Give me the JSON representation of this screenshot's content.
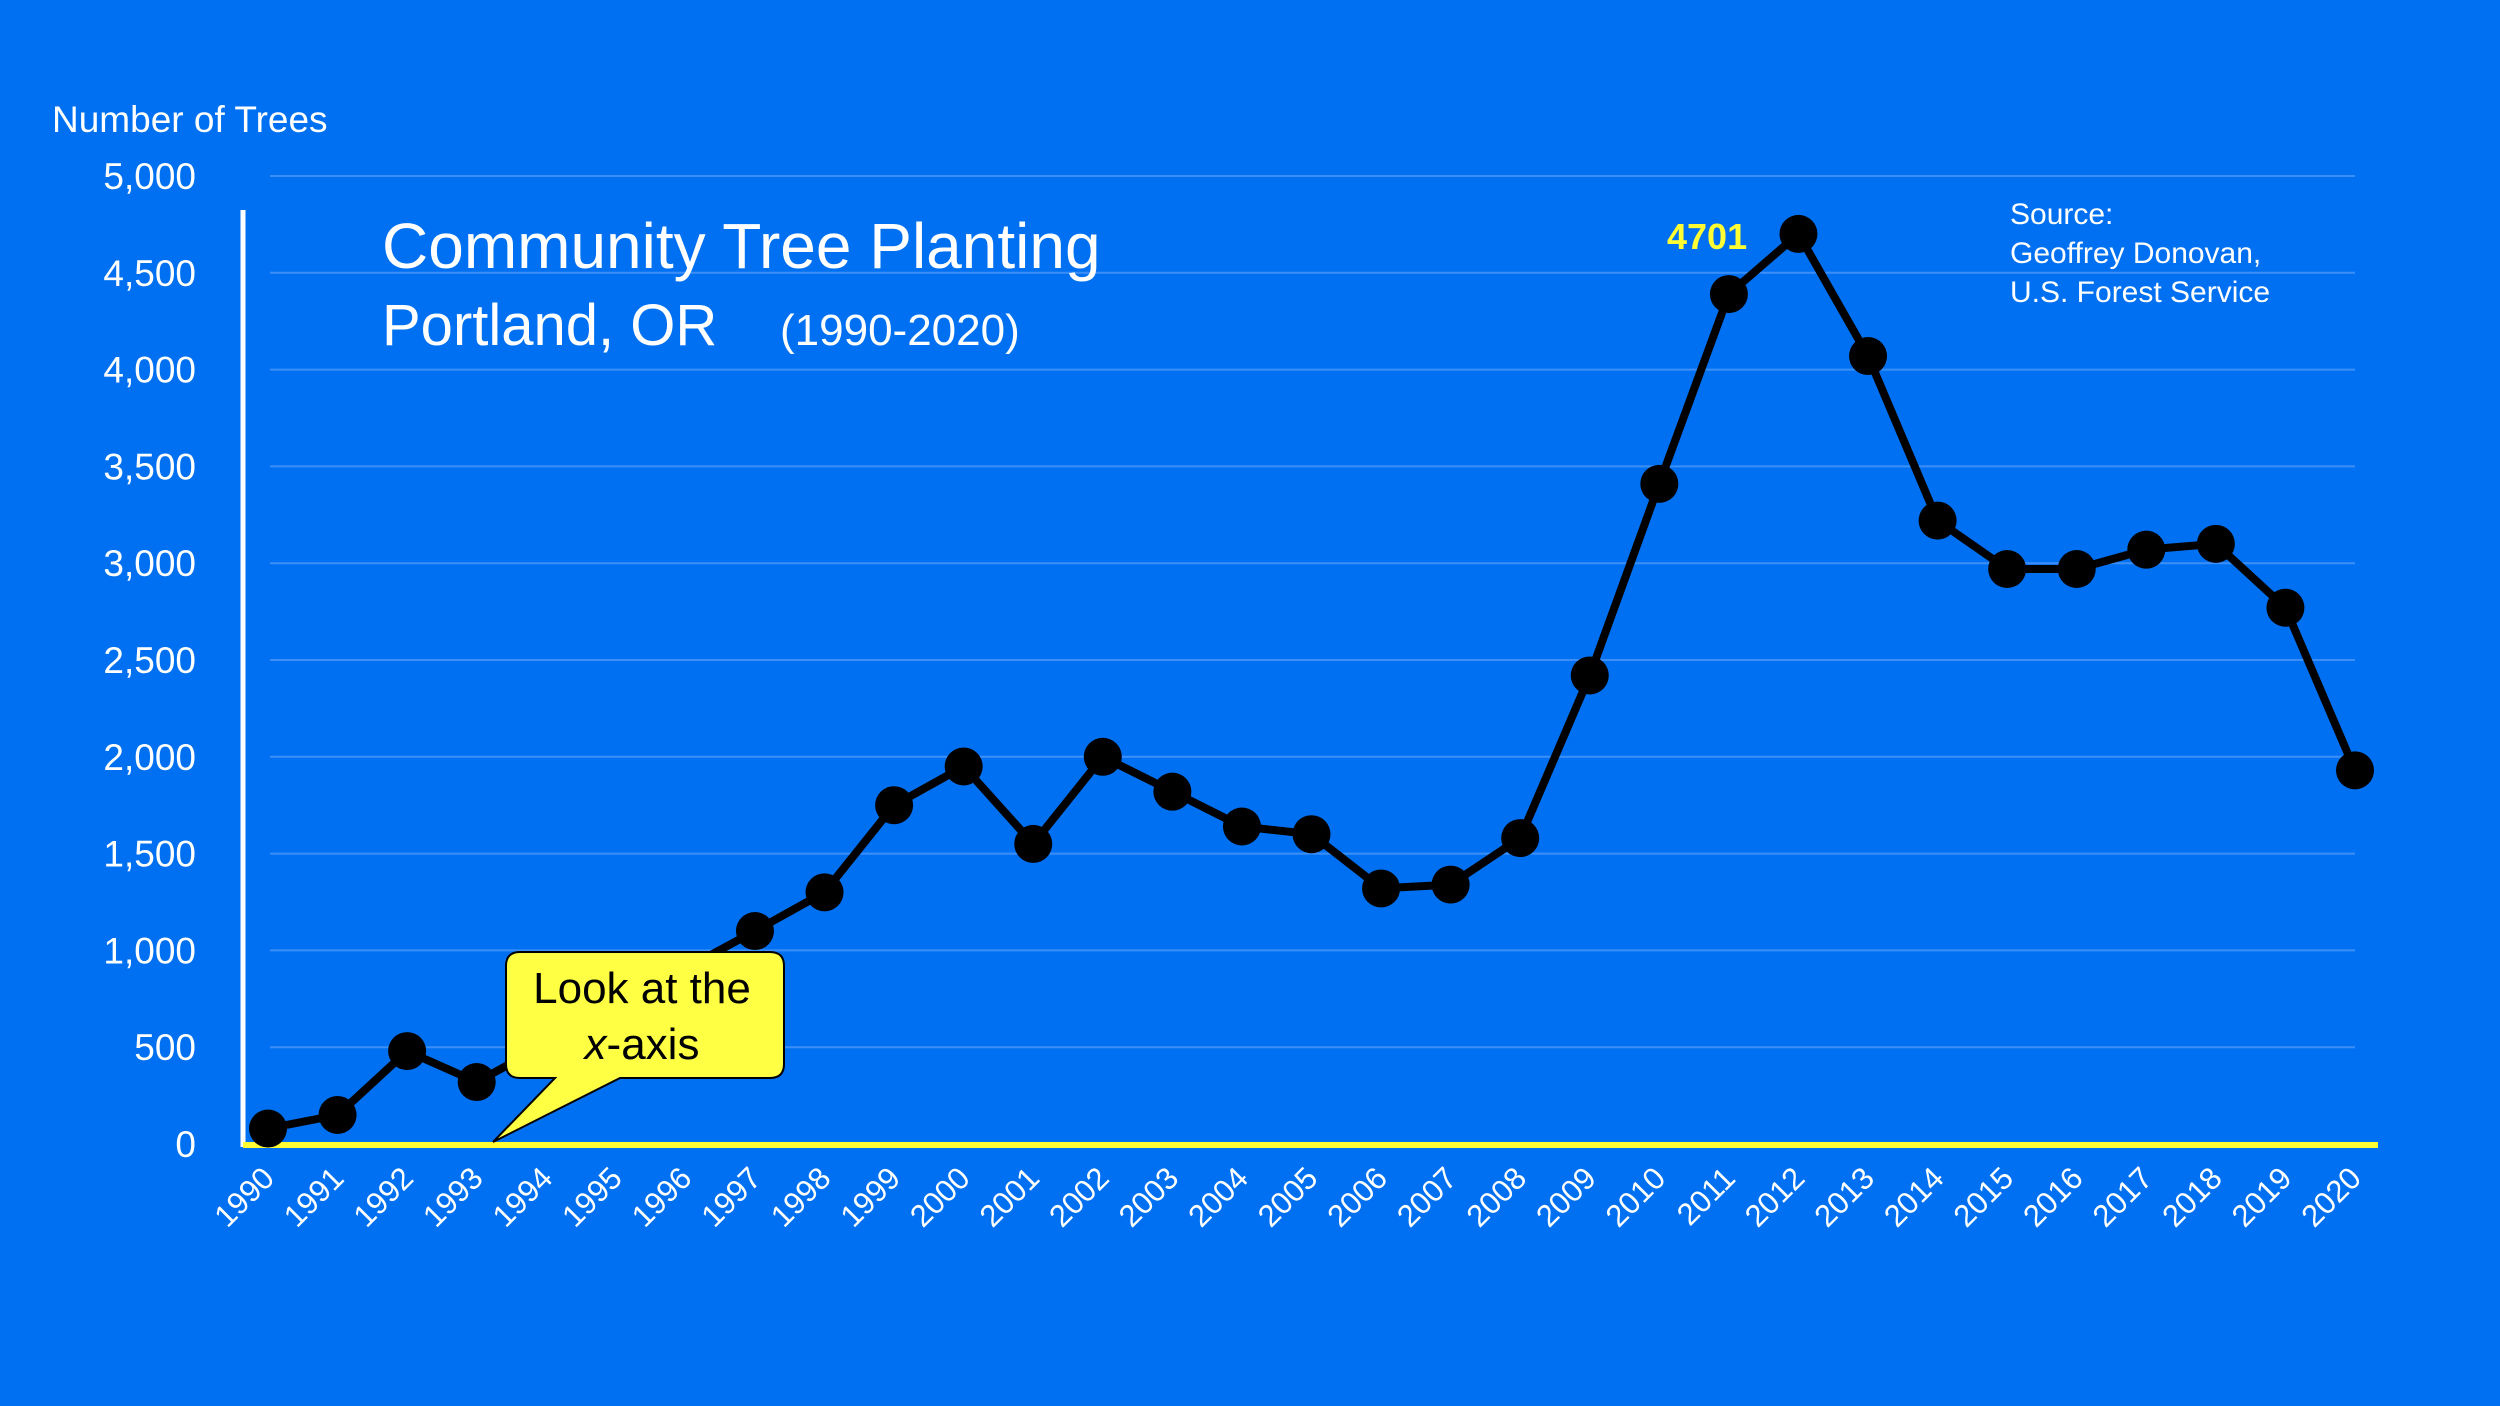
{
  "chart_data": {
    "type": "line",
    "title": "Community Tree Planting",
    "subtitle": "Portland, OR",
    "subtitle_years": "(1990-2020)",
    "ylabel": "Number of Trees",
    "xlabel": "",
    "ylim": [
      0,
      5000
    ],
    "ytick_values": [
      0,
      500,
      1000,
      1500,
      2000,
      2500,
      3000,
      3500,
      4000,
      4500,
      5000
    ],
    "ytick_labels": [
      "0",
      "500",
      "1,000",
      "1,500",
      "2,000",
      "2,500",
      "3,000",
      "3,500",
      "4,000",
      "4,500",
      "5,000"
    ],
    "x": [
      "1990",
      "1991",
      "1992",
      "1993",
      "1994",
      "1995",
      "1996",
      "1997",
      "1998",
      "1999",
      "2000",
      "2001",
      "2002",
      "2003",
      "2004",
      "2005",
      "2006",
      "2007",
      "2008",
      "2009",
      "2010",
      "2011",
      "2012",
      "2013",
      "2014",
      "2015",
      "2016",
      "2017",
      "2018",
      "2019",
      "2020"
    ],
    "x_numeric": [
      1990,
      1991,
      1992,
      1993,
      1994,
      1995,
      1996,
      1997,
      1998,
      1999,
      2000,
      2001,
      2002,
      2003,
      2004,
      2005,
      2006,
      2007,
      2008,
      2009,
      2010,
      2011,
      2012,
      2013,
      2014,
      2015,
      2016,
      2017,
      2018,
      2019,
      2020
    ],
    "points_x": [
      1990,
      1991,
      1992,
      1993,
      1997,
      1998,
      1999,
      2000,
      2001,
      2002,
      2003,
      2004,
      2005,
      2006,
      2007,
      2008,
      2009,
      2010,
      2011,
      2012,
      2013,
      2014,
      2015,
      2016,
      2017,
      2018,
      2019,
      2020
    ],
    "points_y": [
      80,
      150,
      480,
      320,
      1100,
      1300,
      1750,
      1950,
      1550,
      2000,
      1820,
      1640,
      1600,
      1320,
      1340,
      1580,
      2420,
      3410,
      4390,
      4701,
      4070,
      3220,
      2970,
      2970,
      3070,
      3100,
      2770,
      1930
    ],
    "peak": {
      "year": 2012,
      "value": 4701,
      "label": "4701"
    },
    "annotation": {
      "line1": "Look at the",
      "line2_italic": "x",
      "line2_rest": "-axis"
    },
    "source_lines": [
      "Source:",
      "Geoffrey Donovan,",
      "U.S. Forest Service"
    ],
    "grid": true,
    "colors": {
      "background": "#0070f2",
      "line": "#000000",
      "marker": "#000000",
      "gridline": "#3d8ff7",
      "x_axis": "#ffff33",
      "y_axis": "#ffffff",
      "text": "#ffffff",
      "peak_label": "#ffff33",
      "callout_fill": "#ffff44",
      "callout_stroke": "#000000"
    }
  }
}
